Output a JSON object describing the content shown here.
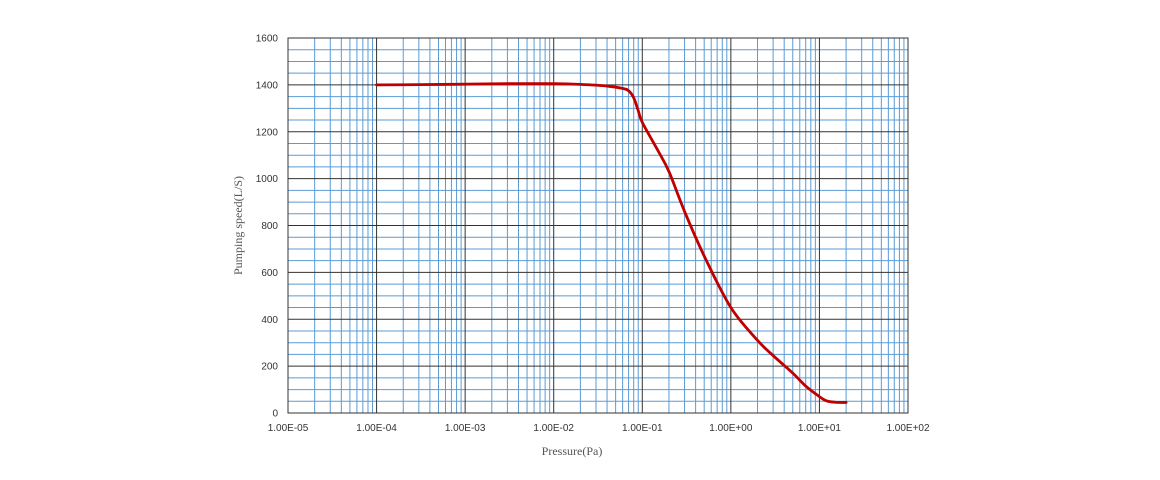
{
  "chart_data": {
    "type": "line",
    "xlabel": "Pressure(Pa)",
    "ylabel": "Pumping speed(L/S)",
    "x_scale": "log",
    "xlim": [
      1e-05,
      100
    ],
    "ylim": [
      0,
      1600
    ],
    "x_ticks": [
      1e-05,
      0.0001,
      0.001,
      0.01,
      0.1,
      1,
      10,
      100
    ],
    "x_tick_labels": [
      "1.00E-05",
      "1.00E-04",
      "1.00E-03",
      "1.00E-02",
      "1.00E-01",
      "1.00E+00",
      "1.00E+01",
      "1.00E+02"
    ],
    "y_ticks": [
      0,
      200,
      400,
      600,
      800,
      1000,
      1200,
      1400,
      1600
    ],
    "y_tick_labels": [
      "0",
      "200",
      "400",
      "600",
      "800",
      "1000",
      "1200",
      "1400",
      "1600"
    ],
    "grid": true,
    "colors": {
      "grid_major": "#333333",
      "grid_minor": "#5b9bd5",
      "line": "#c00000"
    },
    "series": [
      {
        "x": [
          0.0001,
          0.0003,
          0.001,
          0.003,
          0.01,
          0.02,
          0.04,
          0.06,
          0.07,
          0.08,
          0.09,
          0.1,
          0.15,
          0.2,
          0.3,
          0.5,
          1,
          2,
          3,
          5,
          7,
          10,
          12,
          15,
          20
        ],
        "y": [
          1400,
          1401,
          1403,
          1405,
          1405,
          1402,
          1395,
          1385,
          1375,
          1345,
          1290,
          1240,
          1120,
          1030,
          860,
          670,
          450,
          310,
          245,
          170,
          115,
          70,
          52,
          46,
          45
        ]
      }
    ]
  }
}
